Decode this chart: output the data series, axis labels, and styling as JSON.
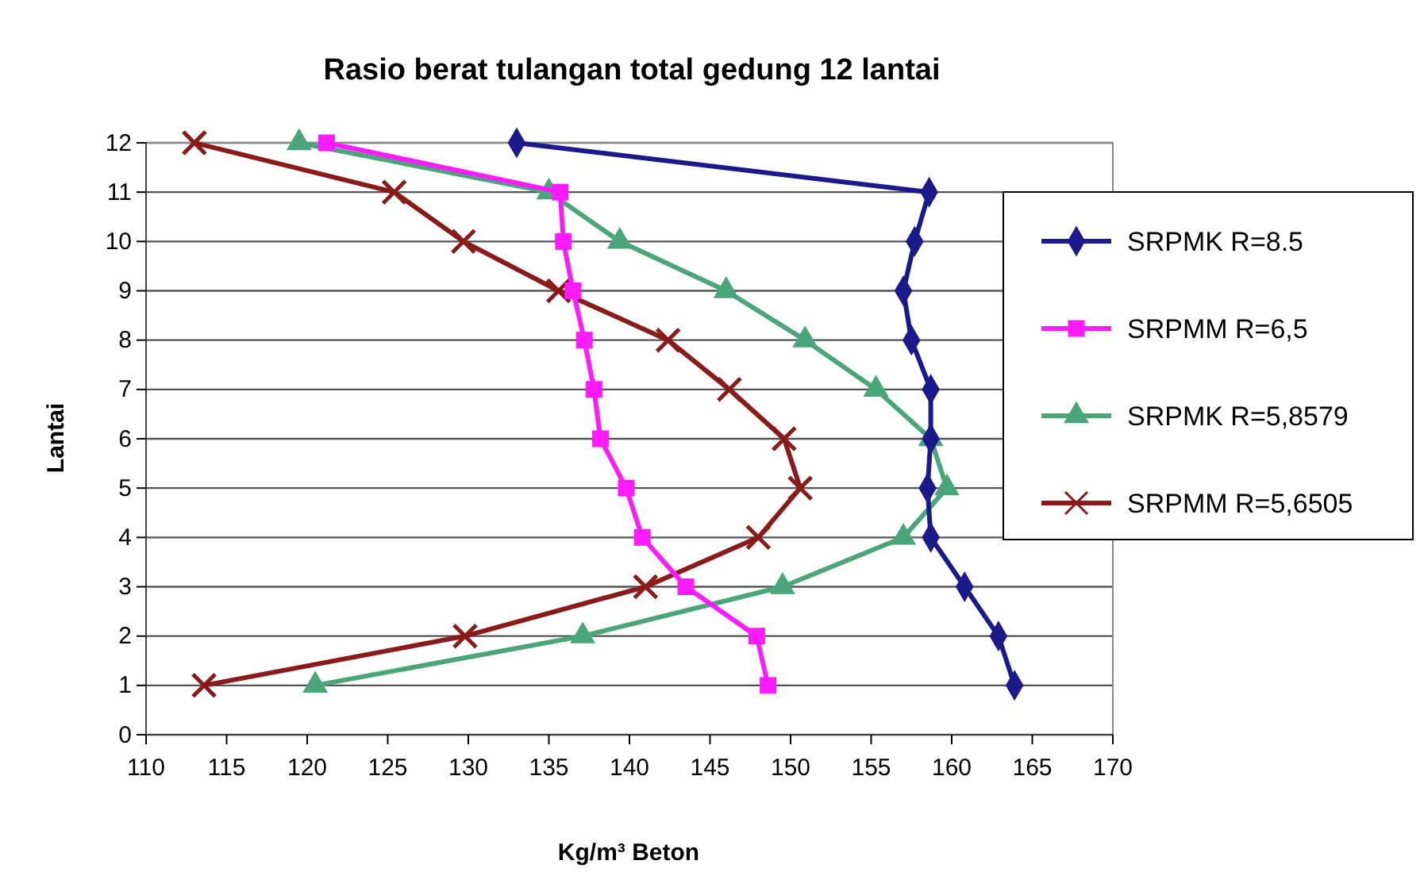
{
  "chart_data": {
    "type": "line",
    "title": "Rasio berat tulangan total gedung 12 lantai",
    "xlabel": "Kg/m³ Beton",
    "ylabel": "Lantai",
    "xlim": [
      110,
      170
    ],
    "xticks": [
      110,
      115,
      120,
      125,
      130,
      135,
      140,
      145,
      150,
      155,
      160,
      165,
      170
    ],
    "ylim": [
      0,
      12
    ],
    "yticks": [
      0,
      1,
      2,
      3,
      4,
      5,
      6,
      7,
      8,
      9,
      10,
      11,
      12
    ],
    "grid": "y",
    "legend": "right",
    "series": [
      {
        "name": "SRPMK R=8.5",
        "color": "#1a1a8c",
        "marker": "diamond",
        "x": [
          133.0,
          158.6,
          157.7,
          157.0,
          157.5,
          158.7,
          158.7,
          158.5,
          158.7,
          160.8,
          162.9,
          163.9
        ],
        "values": [
          12,
          11,
          10,
          9,
          8,
          7,
          6,
          5,
          4,
          3,
          2,
          1
        ]
      },
      {
        "name": "SRPMM R=6,5",
        "color": "#ff1aff",
        "marker": "square",
        "x": [
          121.2,
          135.7,
          135.9,
          136.5,
          137.2,
          137.8,
          138.2,
          139.8,
          140.8,
          143.5,
          147.9,
          148.6
        ],
        "values": [
          12,
          11,
          10,
          9,
          8,
          7,
          6,
          5,
          4,
          3,
          2,
          1
        ]
      },
      {
        "name": "SRPMK R=5,8579",
        "color": "#4aa57a",
        "marker": "triangle",
        "x": [
          119.5,
          135.0,
          139.4,
          146.0,
          150.9,
          155.3,
          158.7,
          159.7,
          157.0,
          149.5,
          137.1,
          120.5
        ],
        "values": [
          12,
          11,
          10,
          9,
          8,
          7,
          6,
          5,
          4,
          3,
          2,
          1
        ]
      },
      {
        "name": "SRPMM R=5,6505",
        "color": "#8b1a1a",
        "marker": "cross",
        "x": [
          113.0,
          125.4,
          129.7,
          135.6,
          142.4,
          146.2,
          149.6,
          150.6,
          148.0,
          141.0,
          129.8,
          113.6
        ],
        "values": [
          12,
          11,
          10,
          9,
          8,
          7,
          6,
          5,
          4,
          3,
          2,
          1
        ]
      }
    ]
  }
}
